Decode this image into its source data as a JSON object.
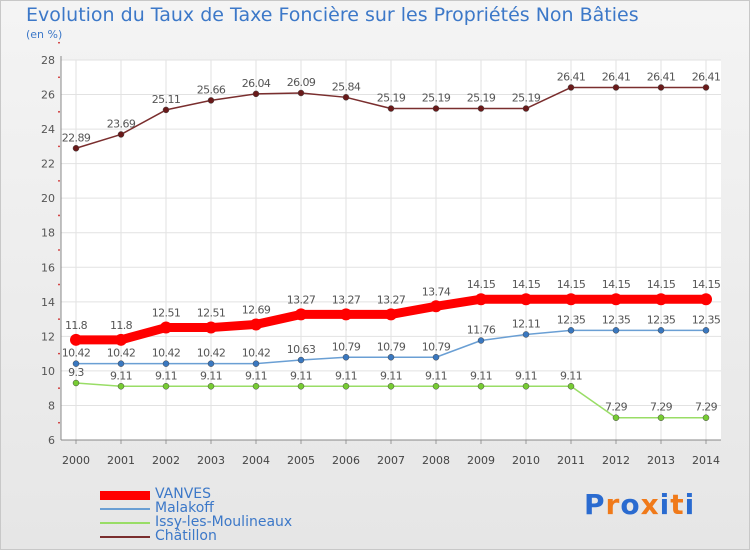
{
  "title": "Evolution du Taux de Taxe Foncière sur les Propriétés Non Bâties",
  "subtitle": "(en %)",
  "logo": {
    "letters": [
      "P",
      "r",
      "o",
      "x",
      "i",
      "t",
      "i"
    ],
    "colors": [
      "#2a6bd0",
      "#f07a1a",
      "#2a6bd0",
      "#f07a1a",
      "#2a6bd0",
      "#f07a1a",
      "#2a6bd0"
    ]
  },
  "chart_data": {
    "type": "line",
    "x": [
      "2000",
      "2001",
      "2002",
      "2003",
      "2004",
      "2005",
      "2006",
      "2007",
      "2008",
      "2009",
      "2010",
      "2011",
      "2012",
      "2013",
      "2014"
    ],
    "ylim": [
      6,
      28
    ],
    "yticks": [
      "6",
      "8",
      "10",
      "12",
      "14",
      "16",
      "18",
      "20",
      "22",
      "24",
      "26",
      "28"
    ],
    "grid": true,
    "legend": "bottom-left",
    "series": [
      {
        "name": "Châtillon",
        "color": "#7a2e2e",
        "marker": "#6a1a1a",
        "values": [
          22.89,
          23.69,
          25.11,
          25.66,
          26.04,
          26.09,
          25.84,
          25.19,
          25.19,
          25.19,
          25.19,
          26.41,
          26.41,
          26.41,
          26.41
        ],
        "labels": [
          "22.89",
          "23.69",
          "25.11",
          "25.66",
          "26.04",
          "26.09",
          "25.84",
          "25.19",
          "25.19",
          "25.19",
          "25.19",
          "26.41",
          "26.41",
          "26.41",
          "26.41"
        ]
      },
      {
        "name": "VANVES",
        "color": "#ff0000",
        "marker": "#ff0000",
        "values": [
          11.8,
          11.8,
          12.51,
          12.51,
          12.69,
          13.27,
          13.27,
          13.27,
          13.74,
          14.15,
          14.15,
          14.15,
          14.15,
          14.15,
          14.15
        ],
        "labels": [
          "11.8",
          "11.8",
          "12.51",
          "12.51",
          "12.69",
          "13.27",
          "13.27",
          "13.27",
          "13.74",
          "14.15",
          "14.15",
          "14.15",
          "14.15",
          "14.15",
          "14.15"
        ]
      },
      {
        "name": "Malakoff",
        "color": "#6a9fd4",
        "marker": "#3a78c0",
        "values": [
          10.42,
          10.42,
          10.42,
          10.42,
          10.42,
          10.63,
          10.79,
          10.79,
          10.79,
          11.76,
          12.11,
          12.35,
          12.35,
          12.35,
          12.35
        ],
        "labels": [
          "10.42",
          "10.42",
          "10.42",
          "10.42",
          "10.42",
          "10.63",
          "10.79",
          "10.79",
          "10.79",
          "11.76",
          "12.11",
          "12.35",
          "12.35",
          "12.35",
          "12.35"
        ]
      },
      {
        "name": "Issy-les-Moulineaux",
        "color": "#99dd66",
        "marker": "#77cc33",
        "values": [
          9.3,
          9.11,
          9.11,
          9.11,
          9.11,
          9.11,
          9.11,
          9.11,
          9.11,
          9.11,
          9.11,
          9.11,
          7.29,
          7.29,
          7.29
        ],
        "labels": [
          "9.3",
          "9.11",
          "9.11",
          "9.11",
          "9.11",
          "9.11",
          "9.11",
          "9.11",
          "9.11",
          "9.11",
          "9.11",
          "9.11",
          "7.29",
          "7.29",
          "7.29"
        ]
      }
    ],
    "legend_order": [
      "VANVES",
      "Malakoff",
      "Issy-les-Moulineaux",
      "Châtillon"
    ]
  }
}
